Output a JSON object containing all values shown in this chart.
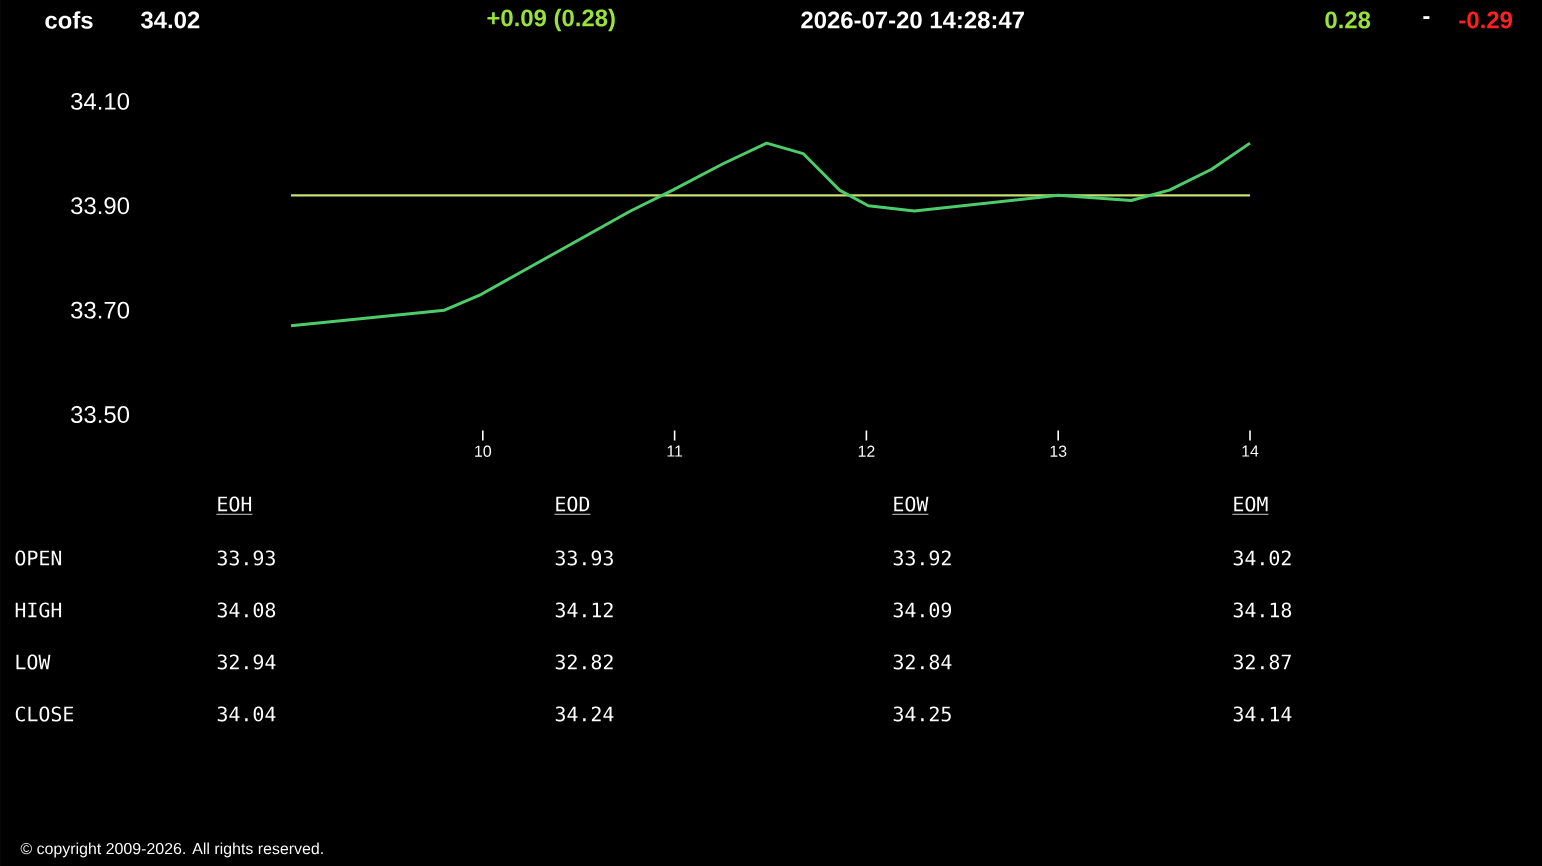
{
  "chart_data": [
    {
      "type": "line",
      "title": "cofs",
      "annotations": [
        "34.02",
        "+0.09  (0.28)",
        "2026-07-20   14:28:47",
        "0.28",
        "-",
        "-0.29",
        "© copyright 2009-2026. All rights reserved."
      ],
      "x": [
        9,
        9.8,
        9.99,
        10.38,
        10.77,
        10.99,
        11.25,
        11.48,
        11.67,
        11.86,
        12.01,
        12.25,
        13,
        13.38,
        13.58,
        13.8,
        14
      ],
      "series": [
        {
          "color": "#4ccc6a",
          "values": [
            33.67,
            33.7,
            33.73,
            33.81,
            33.89,
            33.93,
            33.98,
            34.02,
            34.0,
            33.93,
            33.9,
            33.89,
            33.92,
            33.91,
            33.93,
            33.97,
            34.02
          ]
        }
      ],
      "xlim": [
        9,
        14
      ],
      "xticks": [
        10,
        11,
        12,
        13,
        14
      ],
      "ylim": [
        33.5,
        34.1
      ],
      "yticks": [
        {
          "value": 33.5,
          "label": "33.50"
        },
        {
          "value": 33.7,
          "label": "33.70"
        },
        {
          "value": 33.9,
          "label": "33.90"
        },
        {
          "value": 34.1,
          "label": "34.10"
        }
      ],
      "ref_lines": [
        {
          "axis": "y",
          "value": 33.92,
          "color": "#c8e06e"
        }
      ],
      "grid": false
    },
    {
      "type": "other",
      "categories": [
        "EOH",
        "EOD",
        "EOW",
        "EOM"
      ],
      "series": [
        {
          "name": "OPEN",
          "values": [
            33.93,
            33.93,
            33.92,
            34.02
          ]
        },
        {
          "name": "HIGH",
          "values": [
            34.08,
            34.12,
            34.09,
            34.18
          ]
        },
        {
          "name": "LOW",
          "values": [
            32.94,
            32.82,
            32.84,
            32.87
          ]
        },
        {
          "name": "CLOSE",
          "values": [
            34.04,
            34.24,
            34.25,
            34.14
          ]
        }
      ],
      "data_labels": true
    }
  ]
}
